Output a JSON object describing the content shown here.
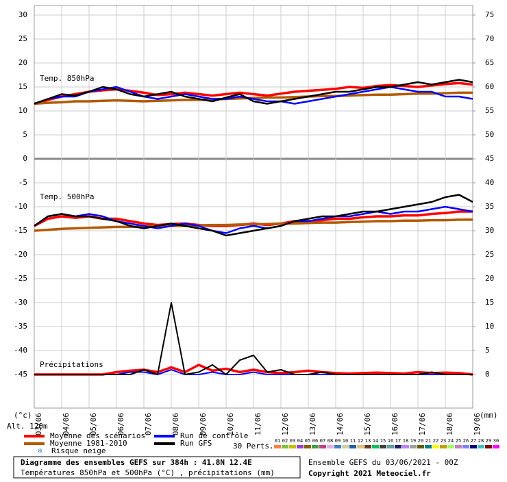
{
  "chart_data": {
    "type": "line",
    "title": "Diagramme des ensembles GEFS sur 384h : 41.8N 12.4E",
    "subtitle": "Températures 850hPa et 500hPa (°C) , précipitations (mm)",
    "run_info": "Ensemble GEFS du 03/06/2021 - 00Z",
    "copyright": "Copyright 2021 Meteociel.fr",
    "y_unit": "(°c)",
    "y2_unit": "(mm)",
    "altitude": "Alt. 120m",
    "panel_labels": [
      "Temp. 850hPa",
      "Temp. 500hPa",
      "Précipitations"
    ],
    "x": [
      0,
      12,
      24,
      36,
      48,
      60,
      72,
      84,
      96,
      108,
      120,
      132,
      144,
      156,
      168,
      180,
      192,
      204,
      216,
      228,
      240,
      252,
      264,
      276,
      288,
      300,
      312,
      324,
      336,
      348,
      360,
      372,
      384
    ],
    "xlim": [
      0,
      384
    ],
    "xticks": [
      {
        "value": 0,
        "label": "03/06"
      },
      {
        "value": 24,
        "label": "04/06"
      },
      {
        "value": 48,
        "label": "05/06"
      },
      {
        "value": 72,
        "label": "06/06"
      },
      {
        "value": 96,
        "label": "07/06"
      },
      {
        "value": 120,
        "label": "08/06"
      },
      {
        "value": 144,
        "label": "09/06"
      },
      {
        "value": 168,
        "label": "10/06"
      },
      {
        "value": 192,
        "label": "11/06"
      },
      {
        "value": 216,
        "label": "12/06"
      },
      {
        "value": 240,
        "label": "13/06"
      },
      {
        "value": 264,
        "label": "14/06"
      },
      {
        "value": 288,
        "label": "15/06"
      },
      {
        "value": 312,
        "label": "16/06"
      },
      {
        "value": 336,
        "label": "17/06"
      },
      {
        "value": 360,
        "label": "18/06"
      },
      {
        "value": 384,
        "label": "19/06"
      }
    ],
    "ylim": [
      -52,
      32
    ],
    "yticks": [
      30,
      25,
      20,
      15,
      10,
      5,
      0,
      -5,
      -10,
      -15,
      -20,
      -25,
      -30,
      -35,
      -40,
      -45
    ],
    "y2lim": [
      -7,
      77
    ],
    "y2ticks": [
      75,
      70,
      65,
      60,
      55,
      50,
      45,
      40,
      35,
      30,
      25,
      20,
      15,
      10,
      5,
      0
    ],
    "grid": true,
    "series": [
      {
        "name": "Moyenne des scénarios",
        "color": "#ff0000",
        "t850": [
          11.5,
          12.3,
          13,
          13.5,
          14,
          14.3,
          14.5,
          14.2,
          13.8,
          13.3,
          13.5,
          13.8,
          13.5,
          13.2,
          13.5,
          13.8,
          13.5,
          13.2,
          13.6,
          14,
          14.2,
          14.4,
          14.6,
          15,
          14.8,
          15.2,
          15.4,
          15.2,
          15,
          15.3,
          15.6,
          15.8,
          15.5
        ],
        "t500": [
          -14,
          -12.5,
          -12,
          -12.3,
          -12,
          -12.5,
          -12.5,
          -13,
          -13.5,
          -13.8,
          -13.6,
          -13.5,
          -13.8,
          -14,
          -14,
          -13.8,
          -13.5,
          -13.8,
          -13.5,
          -13,
          -13,
          -12.8,
          -12.5,
          -12.5,
          -12.2,
          -12,
          -12,
          -11.8,
          -11.8,
          -11.5,
          -11.3,
          -11,
          -11
        ],
        "precip": [
          0,
          0,
          0,
          0,
          0,
          0,
          0.5,
          0.8,
          1,
          0.5,
          1.5,
          0.5,
          2,
          0.8,
          1.2,
          0.5,
          1,
          0.5,
          0.3,
          0.5,
          0.8,
          0.5,
          0.3,
          0.2,
          0.3,
          0.4,
          0.3,
          0.2,
          0.5,
          0.3,
          0.4,
          0.3,
          0
        ]
      },
      {
        "name": "Moyenne 1981-2010",
        "color": "#b35900",
        "t850": [
          11.5,
          11.7,
          11.8,
          12,
          12,
          12.1,
          12.2,
          12.1,
          12,
          12.1,
          12.2,
          12.3,
          12.3,
          12.4,
          12.5,
          12.6,
          12.7,
          12.8,
          12.8,
          12.9,
          13,
          13.1,
          13.1,
          13.2,
          13.3,
          13.4,
          13.4,
          13.5,
          13.6,
          13.6,
          13.7,
          13.8,
          13.8
        ],
        "t500": [
          -15,
          -14.8,
          -14.6,
          -14.5,
          -14.4,
          -14.3,
          -14.2,
          -14.2,
          -14.1,
          -14,
          -14,
          -14,
          -13.9,
          -13.8,
          -13.8,
          -13.7,
          -13.7,
          -13.6,
          -13.5,
          -13.5,
          -13.4,
          -13.3,
          -13.3,
          -13.2,
          -13.1,
          -13,
          -13,
          -12.9,
          -12.9,
          -12.8,
          -12.8,
          -12.7,
          -12.7
        ]
      },
      {
        "name": "Run de contrôle",
        "color": "#0000ff",
        "t850": [
          11.5,
          12.5,
          13,
          13,
          14,
          14.5,
          15,
          14,
          13,
          12.5,
          13,
          13.5,
          13,
          12.5,
          12.5,
          13,
          12.5,
          12,
          12,
          11.5,
          12,
          12.5,
          13,
          13.5,
          14,
          14.5,
          15,
          14.5,
          14,
          14,
          13,
          13,
          12.5
        ],
        "t500": [
          -14,
          -12,
          -11.5,
          -12,
          -11.5,
          -12,
          -13,
          -13.5,
          -14,
          -14.5,
          -14,
          -13.5,
          -14,
          -15,
          -15.5,
          -14.5,
          -14,
          -14.5,
          -14,
          -13,
          -13,
          -12.5,
          -12,
          -12,
          -11.5,
          -11,
          -11.5,
          -11,
          -11,
          -10.5,
          -10,
          -10.5,
          -11
        ],
        "precip": [
          0,
          0,
          0,
          0,
          0,
          0,
          0,
          0.5,
          0.5,
          0,
          1,
          0,
          0,
          0.5,
          0,
          0,
          0.5,
          0,
          0,
          0,
          0,
          0,
          0,
          0,
          0,
          0,
          0,
          0,
          0,
          0,
          0,
          0,
          0
        ]
      },
      {
        "name": "Run GFS",
        "color": "#000000",
        "t850": [
          11.5,
          12.5,
          13.5,
          13.2,
          14,
          15,
          14.5,
          13.5,
          13,
          13.5,
          14,
          13,
          12.5,
          12,
          12.8,
          13.5,
          12,
          11.5,
          12,
          12.5,
          13,
          13.5,
          14,
          14,
          14.5,
          15,
          15,
          15.5,
          16,
          15.5,
          16,
          16.5,
          16
        ],
        "t500": [
          -14,
          -12,
          -11.5,
          -12,
          -12,
          -12.5,
          -13,
          -14,
          -14.5,
          -14,
          -13.5,
          -14,
          -14.5,
          -15,
          -16,
          -15.5,
          -15,
          -14.5,
          -14,
          -13,
          -12.5,
          -12,
          -12,
          -11.5,
          -11,
          -11,
          -10.5,
          -10,
          -9.5,
          -9,
          -8,
          -7.5,
          -9
        ],
        "precip": [
          0,
          0,
          0,
          0,
          0,
          0,
          0,
          0,
          1,
          0,
          15,
          0,
          0.5,
          2,
          0,
          3,
          4,
          0.5,
          1,
          0,
          0,
          0.5,
          0,
          0,
          0,
          0,
          0,
          0,
          0,
          0.5,
          0,
          0,
          0
        ]
      }
    ],
    "snow_label": "Risque neige",
    "perturbations": {
      "label": "30 Perts.",
      "members": [
        {
          "name": "01",
          "color": "#ff8040"
        },
        {
          "name": "02",
          "color": "#80c040"
        },
        {
          "name": "03",
          "color": "#c0c000"
        },
        {
          "name": "04",
          "color": "#a040c0"
        },
        {
          "name": "05",
          "color": "#806000"
        },
        {
          "name": "06",
          "color": "#40a040"
        },
        {
          "name": "07",
          "color": "#c04080"
        },
        {
          "name": "08",
          "color": "#e0b0e0"
        },
        {
          "name": "09",
          "color": "#4080c0"
        },
        {
          "name": "10",
          "color": "#d0d0a0"
        },
        {
          "name": "11",
          "color": "#2060a0"
        },
        {
          "name": "12",
          "color": "#e0c080"
        },
        {
          "name": "13",
          "color": "#604020"
        },
        {
          "name": "14",
          "color": "#00c060"
        },
        {
          "name": "15",
          "color": "#404040"
        },
        {
          "name": "16",
          "color": "#60a0a0"
        },
        {
          "name": "17",
          "color": "#202060"
        },
        {
          "name": "18",
          "color": "#c080ff"
        },
        {
          "name": "19",
          "color": "#a0a0a0"
        },
        {
          "name": "20",
          "color": "#606000"
        },
        {
          "name": "21",
          "color": "#008080"
        },
        {
          "name": "22",
          "color": "#ffff00"
        },
        {
          "name": "23",
          "color": "#c0a000"
        },
        {
          "name": "24",
          "color": "#a0ff60"
        },
        {
          "name": "25",
          "color": "#c080c0"
        },
        {
          "name": "26",
          "color": "#8080ff"
        },
        {
          "name": "27",
          "color": "#000080"
        },
        {
          "name": "28",
          "color": "#40c0c0"
        },
        {
          "name": "29",
          "color": "#800000"
        },
        {
          "name": "30",
          "color": "#ff00ff"
        }
      ]
    }
  }
}
